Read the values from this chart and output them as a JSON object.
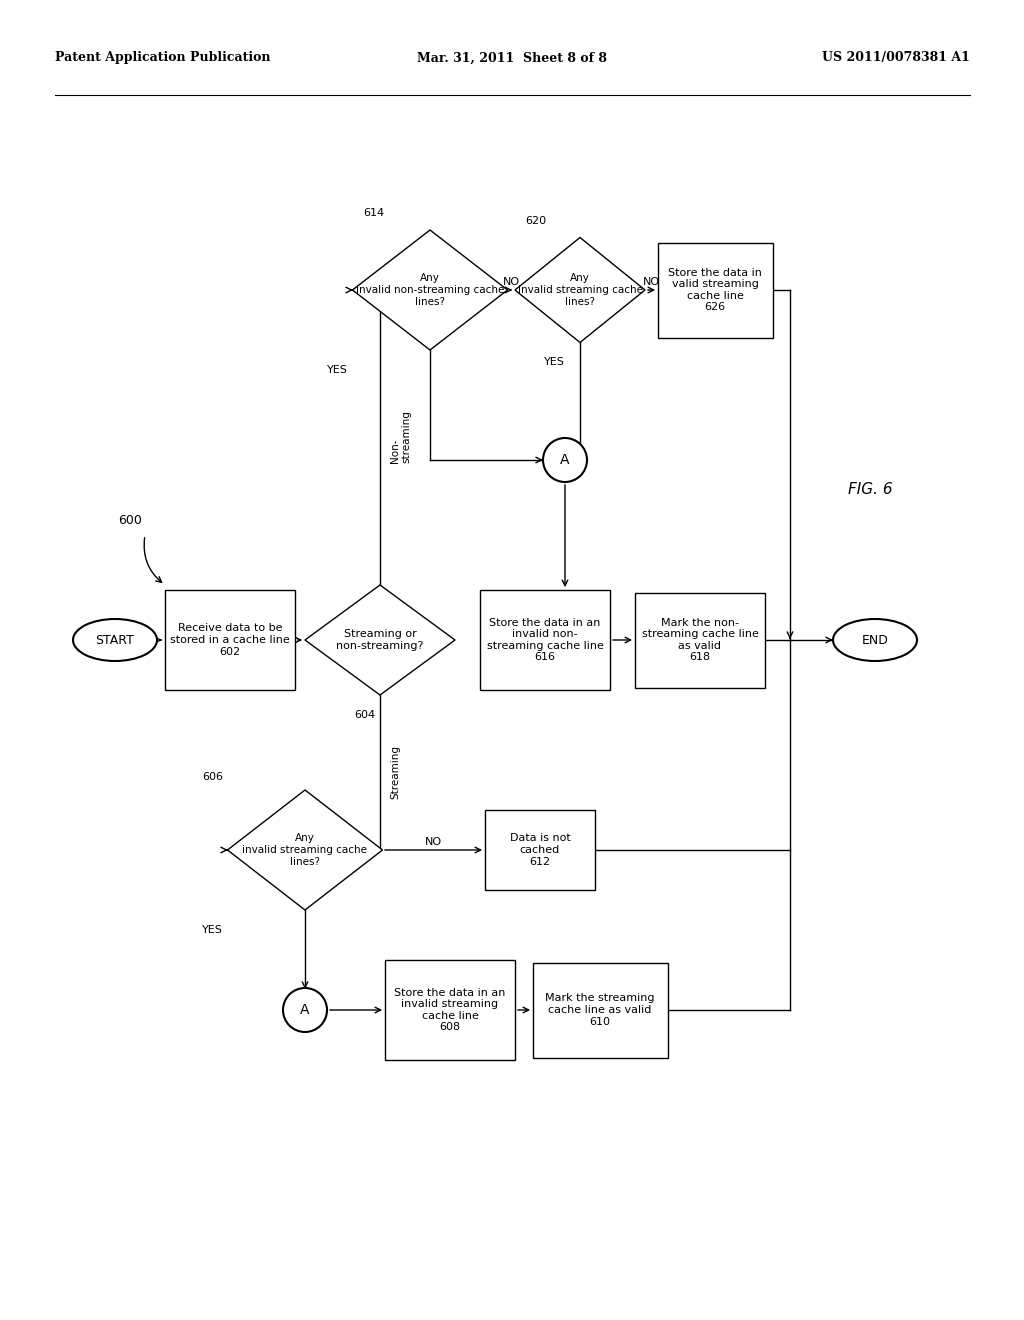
{
  "title_left": "Patent Application Publication",
  "title_center": "Mar. 31, 2011  Sheet 8 of 8",
  "title_right": "US 2011/0078381 A1",
  "fig_label": "FIG. 6",
  "background_color": "#ffffff"
}
